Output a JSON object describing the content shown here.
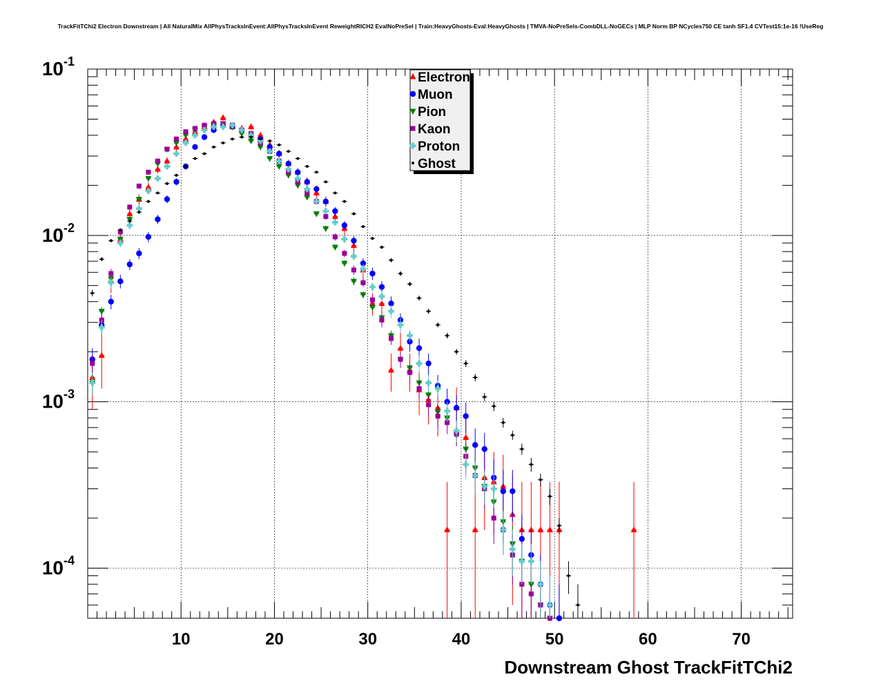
{
  "chart_data": {
    "type": "scatter",
    "title": "TrackFitTChi2 Electron Downstream | All NaturalMix AllPhysTracksInEvent:AllPhysTracksInEvent ReweightRICH2 EvalNoPreSel | Train:HeavyGhosts-Eval:HeavyGhosts | TMVA-NoPreSels-CombDLL-NoGECs | MLP Norm BP NCycles750 CE tanh SF1.4 CVTest15:1e-16 !UseReg",
    "xlabel": "Downstream Ghost TrackFitTChi2",
    "ylabel": "",
    "xlim": [
      0,
      75.5
    ],
    "ylim": [
      5e-05,
      0.1
    ],
    "yscale": "log",
    "grid": true,
    "legend_position": "top-center",
    "x_ticks": [
      {
        "value": 10,
        "label": "10"
      },
      {
        "value": 20,
        "label": "20"
      },
      {
        "value": 30,
        "label": "30"
      },
      {
        "value": 40,
        "label": "40"
      },
      {
        "value": 50,
        "label": "50"
      },
      {
        "value": 60,
        "label": "60"
      },
      {
        "value": 70,
        "label": "70"
      }
    ],
    "y_ticks": [
      {
        "value": 0.1,
        "base": "10",
        "exp": "-1"
      },
      {
        "value": 0.01,
        "base": "10",
        "exp": "-2"
      },
      {
        "value": 0.001,
        "base": "10",
        "exp": "-3"
      },
      {
        "value": 0.0001,
        "base": "10",
        "exp": "-4"
      }
    ],
    "series": [
      {
        "name": "Electron",
        "color": "#ff0000",
        "marker": "triangle-up",
        "x": [
          0.5,
          1.5,
          2.5,
          3.5,
          4.5,
          5.5,
          6.5,
          7.5,
          8.5,
          9.5,
          10.5,
          11.5,
          12.5,
          13.5,
          14.5,
          15.5,
          16.5,
          17.5,
          18.5,
          19.5,
          20.5,
          21.5,
          22.5,
          23.5,
          24.5,
          25.5,
          26.5,
          27.5,
          28.5,
          29.5,
          30.5,
          31.5,
          32.5,
          33.5,
          34.5,
          35.5,
          36.5,
          37.5,
          38.5,
          39.5,
          40.5,
          41.5,
          42.5,
          43.5,
          44.5,
          45.5,
          46.5,
          47.5,
          48.5,
          49.5,
          50.5,
          58.5
        ],
        "y": [
          0.0014,
          0.0019,
          0.0053,
          0.0095,
          0.0135,
          0.0165,
          0.0195,
          0.025,
          0.028,
          0.034,
          0.038,
          0.042,
          0.045,
          0.048,
          0.051,
          0.045,
          0.044,
          0.045,
          0.04,
          0.035,
          0.031,
          0.027,
          0.024,
          0.021,
          0.018,
          0.016,
          0.013,
          0.011,
          0.0087,
          0.0062,
          0.0039,
          0.0039,
          0.00155,
          0.0021,
          0.00155,
          0.00118,
          0.00103,
          0.00092,
          0.00017,
          0.00092,
          0.00061,
          0.00017,
          0.00035,
          0.00033,
          0.00031,
          0.00021,
          0.00017,
          0.00017,
          0.00017,
          0.00017,
          0.00017,
          0.00017
        ],
        "err": [
          0.0005,
          0.0007,
          0.0008,
          0.0009,
          0.001,
          0.0012,
          0.0013,
          0.0015,
          0.0015,
          0.0017,
          0.0018,
          0.0019,
          0.002,
          0.002,
          0.0021,
          0.002,
          0.002,
          0.002,
          0.0019,
          0.0018,
          0.0017,
          0.0016,
          0.0015,
          0.0014,
          0.0013,
          0.0012,
          0.0011,
          0.001,
          0.0009,
          0.0008,
          0.0006,
          0.0006,
          0.0004,
          0.0005,
          0.0004,
          0.00035,
          0.0003,
          0.0003,
          0.00016,
          0.0003,
          0.00025,
          0.00016,
          0.00018,
          0.00017,
          0.00017,
          0.00015,
          0.00016,
          0.00016,
          0.00016,
          0.00016,
          0.00016,
          0.00016
        ]
      },
      {
        "name": "Muon",
        "color": "#0000ff",
        "marker": "circle",
        "x": [
          0.5,
          1.5,
          2.5,
          3.5,
          4.5,
          5.5,
          6.5,
          7.5,
          8.5,
          9.5,
          10.5,
          11.5,
          12.5,
          13.5,
          14.5,
          15.5,
          16.5,
          17.5,
          18.5,
          19.5,
          20.5,
          21.5,
          22.5,
          23.5,
          24.5,
          25.5,
          26.5,
          27.5,
          28.5,
          29.5,
          30.5,
          31.5,
          32.5,
          33.5,
          34.5,
          35.5,
          36.5,
          37.5,
          38.5,
          39.5,
          40.5,
          41.5,
          42.5,
          43.5,
          44.5,
          45.5,
          46.5,
          47.5,
          48.5,
          49.5,
          50.5
        ],
        "y": [
          0.0018,
          0.0029,
          0.004,
          0.0053,
          0.0067,
          0.0078,
          0.0098,
          0.0125,
          0.0165,
          0.021,
          0.026,
          0.034,
          0.039,
          0.043,
          0.046,
          0.045,
          0.043,
          0.04,
          0.038,
          0.034,
          0.031,
          0.027,
          0.024,
          0.021,
          0.019,
          0.016,
          0.014,
          0.0115,
          0.0093,
          0.0068,
          0.0059,
          0.0049,
          0.0039,
          0.0031,
          0.0023,
          0.0021,
          0.0017,
          0.00125,
          0.001,
          0.00092,
          0.00082,
          0.00055,
          0.00052,
          0.00035,
          0.00029,
          0.00029,
          0.00015,
          0.00012,
          8e-05,
          6e-05,
          5e-05
        ],
        "err": [
          0.0003,
          0.0004,
          0.0004,
          0.0005,
          0.0005,
          0.0006,
          0.0007,
          0.0008,
          0.0009,
          0.001,
          0.0011,
          0.0013,
          0.0014,
          0.0014,
          0.0015,
          0.0015,
          0.0014,
          0.0014,
          0.0013,
          0.0013,
          0.0012,
          0.0011,
          0.001,
          0.001,
          0.0009,
          0.0008,
          0.0008,
          0.0007,
          0.0006,
          0.0005,
          0.0005,
          0.0004,
          0.0004,
          0.0003,
          0.0003,
          0.0003,
          0.00025,
          0.0002,
          0.0002,
          0.00018,
          0.00017,
          0.00014,
          0.00013,
          0.0001,
          0.0001,
          0.0001,
          6e-05,
          5e-05,
          4e-05,
          3e-05,
          3e-05
        ]
      },
      {
        "name": "Pion",
        "color": "#008000",
        "marker": "triangle-down",
        "x": [
          0.5,
          1.5,
          2.5,
          3.5,
          4.5,
          5.5,
          6.5,
          7.5,
          8.5,
          9.5,
          10.5,
          11.5,
          12.5,
          13.5,
          14.5,
          15.5,
          16.5,
          17.5,
          18.5,
          19.5,
          20.5,
          21.5,
          22.5,
          23.5,
          24.5,
          25.5,
          26.5,
          27.5,
          28.5,
          29.5,
          30.5,
          31.5,
          32.5,
          33.5,
          34.5,
          35.5,
          36.5,
          37.5,
          38.5,
          39.5,
          40.5,
          41.5,
          42.5,
          43.5,
          44.5,
          45.5,
          46.5,
          47.5,
          48.5,
          49.5
        ],
        "y": [
          0.0013,
          0.0035,
          0.0055,
          0.0095,
          0.0125,
          0.0165,
          0.022,
          0.027,
          0.033,
          0.036,
          0.04,
          0.043,
          0.045,
          0.046,
          0.047,
          0.045,
          0.041,
          0.037,
          0.034,
          0.029,
          0.026,
          0.023,
          0.02,
          0.017,
          0.0135,
          0.011,
          0.0085,
          0.0068,
          0.0053,
          0.0044,
          0.0037,
          0.0032,
          0.0025,
          0.0018,
          0.0016,
          0.0013,
          0.0011,
          0.00087,
          0.0008,
          0.00063,
          0.00052,
          0.0004,
          0.00031,
          0.00025,
          0.00019,
          0.00014,
          0.00011,
          8e-05,
          6e-05,
          5e-05
        ],
        "err": [
          0.0002,
          0.0002,
          0.0003,
          0.0004,
          0.0004,
          0.0005,
          0.0006,
          0.0006,
          0.0007,
          0.0007,
          0.0007,
          0.0008,
          0.0008,
          0.0008,
          0.0008,
          0.0008,
          0.0008,
          0.0007,
          0.0007,
          0.0006,
          0.0006,
          0.0006,
          0.0005,
          0.0005,
          0.0004,
          0.0004,
          0.0003,
          0.0003,
          0.0003,
          0.0002,
          0.0002,
          0.0002,
          0.00018,
          0.00015,
          0.00014,
          0.00012,
          0.00011,
          0.0001,
          9e-05,
          8e-05,
          7e-05,
          6e-05,
          5e-05,
          5e-05,
          4e-05,
          4e-05,
          3e-05,
          3e-05,
          2e-05,
          2e-05
        ]
      },
      {
        "name": "Kaon",
        "color": "#990099",
        "marker": "square",
        "x": [
          0.5,
          1.5,
          2.5,
          3.5,
          4.5,
          5.5,
          6.5,
          7.5,
          8.5,
          9.5,
          10.5,
          11.5,
          12.5,
          13.5,
          14.5,
          15.5,
          16.5,
          17.5,
          18.5,
          19.5,
          20.5,
          21.5,
          22.5,
          23.5,
          24.5,
          25.5,
          26.5,
          27.5,
          28.5,
          29.5,
          30.5,
          31.5,
          32.5,
          33.5,
          34.5,
          35.5,
          36.5,
          37.5,
          38.5,
          39.5,
          40.5,
          41.5,
          42.5,
          43.5,
          44.5,
          45.5,
          46.5,
          47.5,
          48.5,
          49.5
        ],
        "y": [
          0.0017,
          0.0031,
          0.0059,
          0.0105,
          0.0148,
          0.0198,
          0.024,
          0.028,
          0.033,
          0.038,
          0.042,
          0.044,
          0.046,
          0.047,
          0.047,
          0.046,
          0.043,
          0.041,
          0.036,
          0.032,
          0.028,
          0.024,
          0.021,
          0.018,
          0.016,
          0.013,
          0.0098,
          0.0078,
          0.0062,
          0.0052,
          0.0041,
          0.0031,
          0.0024,
          0.0018,
          0.0015,
          0.0012,
          0.00096,
          0.00082,
          0.00075,
          0.00064,
          0.00047,
          0.00036,
          0.0003,
          0.0002,
          0.00017,
          0.00012,
          8e-05,
          7e-05,
          6e-05,
          5e-05
        ],
        "err": [
          0.0002,
          0.0003,
          0.0004,
          0.0005,
          0.0006,
          0.0007,
          0.0007,
          0.0008,
          0.0009,
          0.0009,
          0.001,
          0.001,
          0.001,
          0.001,
          0.001,
          0.001,
          0.001,
          0.001,
          0.0009,
          0.0009,
          0.0008,
          0.0008,
          0.0007,
          0.0007,
          0.0006,
          0.0006,
          0.0005,
          0.0004,
          0.0004,
          0.0003,
          0.0003,
          0.0003,
          0.0002,
          0.0002,
          0.0002,
          0.00015,
          0.00013,
          0.00012,
          0.00011,
          0.0001,
          9e-05,
          8e-05,
          7e-05,
          6e-05,
          5e-05,
          4e-05,
          3e-05,
          3e-05,
          3e-05,
          2e-05
        ]
      },
      {
        "name": "Proton",
        "color": "#66cccc",
        "marker": "cross",
        "x": [
          0.5,
          1.5,
          2.5,
          3.5,
          4.5,
          5.5,
          6.5,
          7.5,
          8.5,
          9.5,
          10.5,
          11.5,
          12.5,
          13.5,
          14.5,
          15.5,
          16.5,
          17.5,
          18.5,
          19.5,
          20.5,
          21.5,
          22.5,
          23.5,
          24.5,
          25.5,
          26.5,
          27.5,
          28.5,
          29.5,
          30.5,
          31.5,
          32.5,
          33.5,
          34.5,
          35.5,
          36.5,
          37.5,
          38.5,
          39.5,
          40.5,
          41.5,
          42.5,
          43.5,
          44.5,
          45.5,
          46.5,
          47.5,
          48.5,
          49.5
        ],
        "y": [
          0.0013,
          0.0028,
          0.0052,
          0.009,
          0.0115,
          0.0145,
          0.0185,
          0.022,
          0.026,
          0.031,
          0.036,
          0.04,
          0.043,
          0.045,
          0.045,
          0.046,
          0.043,
          0.04,
          0.037,
          0.032,
          0.028,
          0.025,
          0.022,
          0.019,
          0.016,
          0.014,
          0.012,
          0.0095,
          0.0075,
          0.0063,
          0.0049,
          0.0043,
          0.0035,
          0.0029,
          0.0025,
          0.0017,
          0.0013,
          0.0012,
          0.00088,
          0.00067,
          0.00042,
          0.00036,
          0.00031,
          0.0003,
          0.00017,
          0.00013,
          0.00011,
          0.00011,
          8e-05,
          6e-05
        ],
        "err": [
          0.0002,
          0.0003,
          0.0004,
          0.0005,
          0.0006,
          0.0006,
          0.0007,
          0.0008,
          0.0008,
          0.0009,
          0.001,
          0.001,
          0.001,
          0.001,
          0.001,
          0.001,
          0.001,
          0.001,
          0.001,
          0.0009,
          0.0008,
          0.0008,
          0.0007,
          0.0007,
          0.0006,
          0.0006,
          0.0005,
          0.0005,
          0.0004,
          0.0004,
          0.0003,
          0.0003,
          0.0003,
          0.0003,
          0.0002,
          0.0002,
          0.00015,
          0.00014,
          0.00012,
          0.0001,
          8e-05,
          8e-05,
          7e-05,
          7e-05,
          5e-05,
          4e-05,
          3e-05,
          3e-05,
          3e-05,
          3e-05
        ]
      },
      {
        "name": "Ghost",
        "color": "#000000",
        "marker": "small-dot",
        "x": [
          0.5,
          1.5,
          2.5,
          3.5,
          4.5,
          5.5,
          6.5,
          7.5,
          8.5,
          9.5,
          10.5,
          11.5,
          12.5,
          13.5,
          14.5,
          15.5,
          16.5,
          17.5,
          18.5,
          19.5,
          20.5,
          21.5,
          22.5,
          23.5,
          24.5,
          25.5,
          26.5,
          27.5,
          28.5,
          29.5,
          30.5,
          31.5,
          32.5,
          33.5,
          34.5,
          35.5,
          36.5,
          37.5,
          38.5,
          39.5,
          40.5,
          41.5,
          42.5,
          43.5,
          44.5,
          45.5,
          46.5,
          47.5,
          48.5,
          49.5,
          50.5,
          51.5,
          52.5
        ],
        "y": [
          0.0045,
          0.0072,
          0.0093,
          0.0108,
          0.0122,
          0.0138,
          0.016,
          0.018,
          0.0205,
          0.023,
          0.026,
          0.029,
          0.031,
          0.034,
          0.036,
          0.038,
          0.039,
          0.039,
          0.038,
          0.037,
          0.035,
          0.032,
          0.029,
          0.026,
          0.024,
          0.021,
          0.018,
          0.016,
          0.0135,
          0.0113,
          0.0096,
          0.0085,
          0.0071,
          0.0059,
          0.0051,
          0.0042,
          0.0035,
          0.0029,
          0.0025,
          0.002,
          0.0017,
          0.0014,
          0.00107,
          0.00094,
          0.00075,
          0.00063,
          0.00052,
          0.00042,
          0.00034,
          0.00027,
          0.00018,
          9e-05,
          6e-05
        ],
        "err": [
          0.0002,
          0.0002,
          0.0002,
          0.0002,
          0.0003,
          0.0003,
          0.0003,
          0.0003,
          0.0004,
          0.0004,
          0.0004,
          0.0004,
          0.0004,
          0.0004,
          0.0004,
          0.0004,
          0.0004,
          0.0004,
          0.0004,
          0.0004,
          0.0004,
          0.0004,
          0.0004,
          0.0003,
          0.0003,
          0.0003,
          0.0003,
          0.0003,
          0.0003,
          0.0002,
          0.0002,
          0.0002,
          0.0002,
          0.0002,
          0.00015,
          0.00015,
          0.00012,
          0.0001,
          0.0001,
          8e-05,
          8e-05,
          7e-05,
          6e-05,
          6e-05,
          5e-05,
          4e-05,
          4e-05,
          4e-05,
          3e-05,
          3e-05,
          2e-05,
          2e-05,
          2e-05
        ]
      }
    ]
  }
}
